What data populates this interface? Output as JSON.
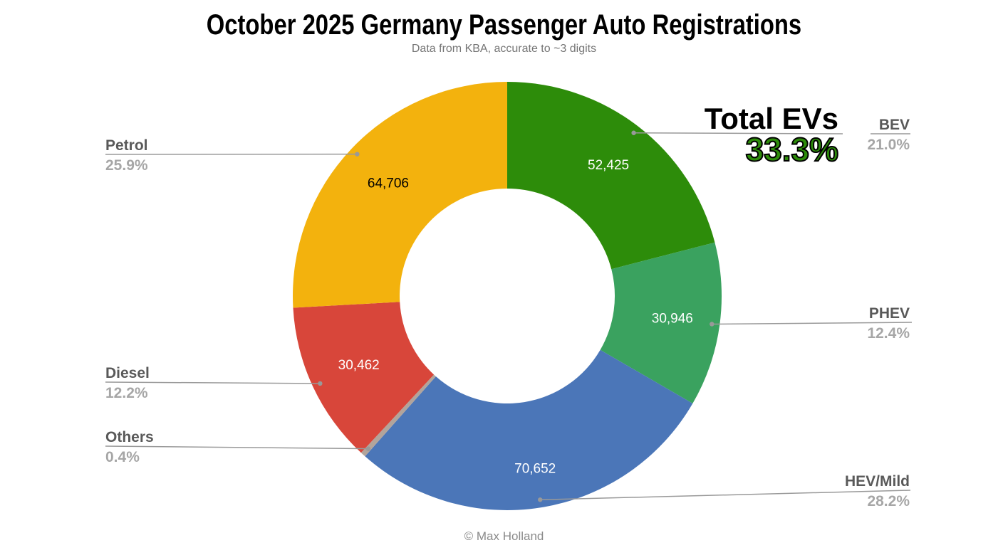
{
  "title": "October 2025 Germany Passenger Auto Registrations",
  "subtitle": "Data from KBA, accurate to ~3 digits",
  "footer": "© Max Holland",
  "chart_data": {
    "type": "pie",
    "subtype": "donut",
    "start_angle_deg": 0,
    "direction": "clockwise",
    "inner_radius_ratio": 0.5,
    "legend_position": "callout-labels",
    "total_annotation": {
      "label": "Total EVs",
      "value": "33.3%",
      "color": "#2d8c0a"
    },
    "slices": [
      {
        "label": "BEV",
        "value": 52425,
        "value_label": "52,425",
        "percent": 21.0,
        "percent_label": "21.0%",
        "color": "#2d8c0a",
        "value_text_color": "#ffffff"
      },
      {
        "label": "PHEV",
        "value": 30946,
        "value_label": "30,946",
        "percent": 12.4,
        "percent_label": "12.4%",
        "color": "#3aa25f",
        "value_text_color": "#ffffff"
      },
      {
        "label": "HEV/Mild",
        "value": 70652,
        "value_label": "70,652",
        "percent": 28.2,
        "percent_label": "28.2%",
        "color": "#4b76b8",
        "value_text_color": "#ffffff"
      },
      {
        "label": "Others",
        "value": null,
        "value_label": "",
        "percent": 0.4,
        "percent_label": "0.4%",
        "color": "#b2a49b",
        "value_text_color": "#ffffff"
      },
      {
        "label": "Diesel",
        "value": 30462,
        "value_label": "30,462",
        "percent": 12.2,
        "percent_label": "12.2%",
        "color": "#d8463a",
        "value_text_color": "#ffffff"
      },
      {
        "label": "Petrol",
        "value": 64706,
        "value_label": "64,706",
        "percent": 25.9,
        "percent_label": "25.9%",
        "color": "#f3b20d",
        "value_text_color": "#000000"
      }
    ]
  }
}
